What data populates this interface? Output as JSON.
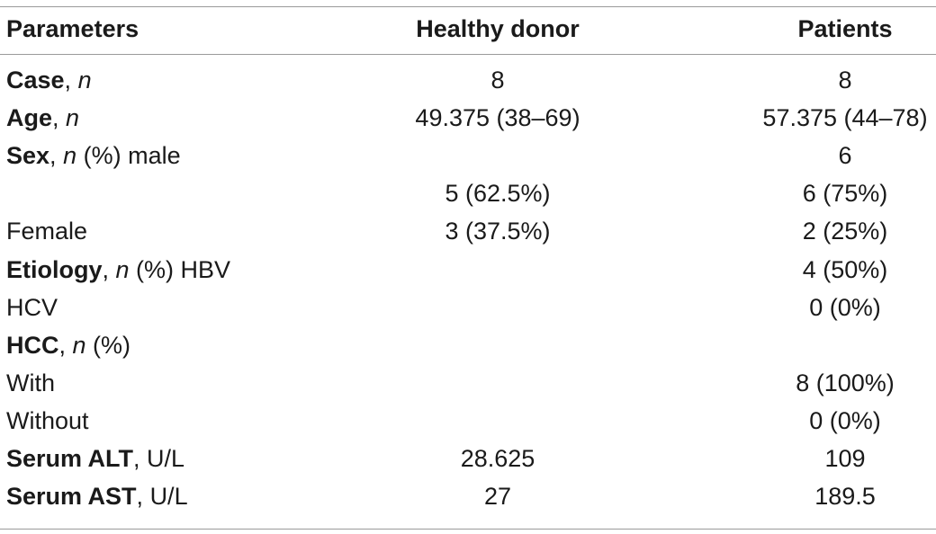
{
  "header": {
    "col1": "Parameters",
    "col2": "Healthy donor",
    "col3": "Patients"
  },
  "rows": [
    {
      "label_bold": "Case",
      "label_sep": ", ",
      "label_italic": "n",
      "label_rest": "",
      "healthy": "8",
      "patients": "8"
    },
    {
      "label_bold": "Age",
      "label_sep": ", ",
      "label_italic": "n",
      "label_rest": "",
      "healthy": "49.375 (38–69)",
      "patients": "57.375 (44–78)"
    },
    {
      "label_bold": "Sex",
      "label_sep": ", ",
      "label_italic": "n",
      "label_rest": " (%) male",
      "healthy": "",
      "patients": "6"
    },
    {
      "label_bold": "",
      "label_sep": "",
      "label_italic": "",
      "label_rest": "",
      "healthy": "5 (62.5%)",
      "patients": "6 (75%)"
    },
    {
      "label_bold": "",
      "label_sep": "",
      "label_italic": "",
      "label_rest": "Female",
      "healthy": "3 (37.5%)",
      "patients": "2 (25%)"
    },
    {
      "label_bold": "Etiology",
      "label_sep": ", ",
      "label_italic": "n",
      "label_rest": " (%) HBV",
      "healthy": "",
      "patients": "4 (50%)"
    },
    {
      "label_bold": "",
      "label_sep": "",
      "label_italic": "",
      "label_rest": "HCV",
      "healthy": "",
      "patients": "0 (0%)"
    },
    {
      "label_bold": "HCC",
      "label_sep": ", ",
      "label_italic": "n",
      "label_rest": " (%)",
      "healthy": "",
      "patients": ""
    },
    {
      "label_bold": "",
      "label_sep": "",
      "label_italic": "",
      "label_rest": "With",
      "healthy": "",
      "patients": "8 (100%)"
    },
    {
      "label_bold": "",
      "label_sep": "",
      "label_italic": "",
      "label_rest": "Without",
      "healthy": "",
      "patients": "0 (0%)"
    },
    {
      "label_bold": "Serum ALT",
      "label_sep": ", ",
      "label_italic": "",
      "label_rest": "U/L",
      "healthy": "28.625",
      "patients": "109"
    },
    {
      "label_bold": "Serum AST",
      "label_sep": ", ",
      "label_italic": "",
      "label_rest": "U/L",
      "healthy": "27",
      "patients": "189.5"
    }
  ]
}
